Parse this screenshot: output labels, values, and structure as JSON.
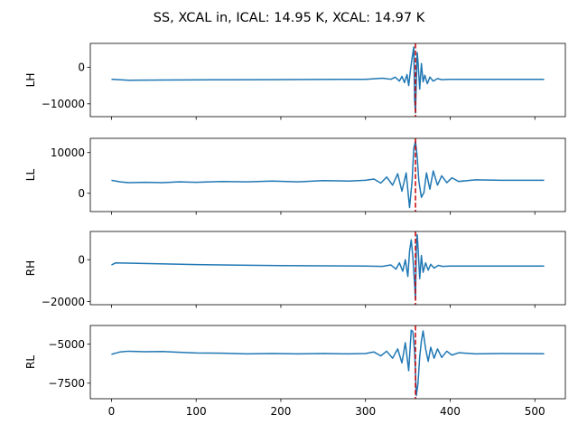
{
  "chart_data": {
    "type": "line",
    "title": "SS, XCAL in, ICAL: 14.95 K, XCAL: 14.97 K",
    "colors": {
      "series": "#1f77b4",
      "marker": "#cc0000"
    },
    "x_ticks": [
      0,
      100,
      200,
      300,
      400,
      500
    ],
    "xlim": [
      -25,
      536
    ],
    "marker_x": 359,
    "panels": [
      {
        "ylabel": "LH",
        "ylim": [
          -13500,
          6500
        ],
        "y_ticks": [
          0,
          -10000
        ],
        "y_tick_labels": [
          "0",
          "−10000"
        ],
        "baseline": [
          [
            0,
            -3200
          ],
          [
            100,
            -3500
          ],
          [
            200,
            -3400
          ],
          [
            300,
            -3350
          ],
          [
            511,
            -3300
          ]
        ],
        "series": {
          "name": "",
          "x": [
            0,
            20,
            60,
            120,
            180,
            240,
            300,
            320,
            330,
            335,
            340,
            343,
            346,
            349,
            351,
            353,
            355,
            357,
            358,
            359,
            360,
            361,
            362,
            364,
            366,
            368,
            370,
            373,
            376,
            380,
            385,
            390,
            400,
            430,
            511
          ],
          "y": [
            -3300,
            -3550,
            -3500,
            -3450,
            -3400,
            -3350,
            -3300,
            -3000,
            -3300,
            -2700,
            -3800,
            -2500,
            -4200,
            -2000,
            -5000,
            -1000,
            2500,
            5500,
            -9000,
            -12500,
            -4000,
            4000,
            1500,
            -6000,
            1000,
            -4000,
            -2200,
            -4500,
            -2700,
            -3800,
            -3100,
            -3400,
            -3300,
            -3300,
            -3300
          ]
        }
      },
      {
        "ylabel": "LL",
        "ylim": [
          -4500,
          13500
        ],
        "y_ticks": [
          10000,
          0
        ],
        "y_tick_labels": [
          "10000",
          "0"
        ],
        "baseline": [
          [
            0,
            3200
          ],
          [
            20,
            2700
          ],
          [
            80,
            2800
          ],
          [
            150,
            2900
          ],
          [
            250,
            3000
          ],
          [
            511,
            3200
          ]
        ],
        "series": {
          "name": "",
          "x": [
            0,
            10,
            20,
            40,
            60,
            80,
            100,
            130,
            160,
            190,
            220,
            250,
            280,
            300,
            310,
            318,
            325,
            332,
            338,
            343,
            348,
            352,
            355,
            357,
            359,
            361,
            363,
            366,
            369,
            372,
            376,
            380,
            385,
            390,
            396,
            402,
            410,
            430,
            460,
            511
          ],
          "y": [
            3200,
            2800,
            2600,
            2700,
            2600,
            2800,
            2700,
            2900,
            2800,
            3000,
            2800,
            3100,
            3000,
            3200,
            3500,
            2500,
            4000,
            2000,
            4800,
            500,
            5000,
            -3500,
            3000,
            11000,
            12800,
            9000,
            3000,
            -1000,
            200,
            5000,
            1000,
            5500,
            2000,
            4300,
            2600,
            3800,
            2900,
            3300,
            3200,
            3200
          ]
        }
      },
      {
        "ylabel": "RH",
        "ylim": [
          -21500,
          13500
        ],
        "y_ticks": [
          0,
          -20000
        ],
        "y_tick_labels": [
          "0",
          "−20000"
        ],
        "baseline": [
          [
            0,
            -1500
          ],
          [
            100,
            -2400
          ],
          [
            200,
            -2800
          ],
          [
            300,
            -3000
          ],
          [
            511,
            -3000
          ]
        ],
        "series": {
          "name": "",
          "x": [
            0,
            5,
            50,
            100,
            150,
            200,
            250,
            300,
            320,
            330,
            336,
            340,
            344,
            347,
            350,
            352,
            354,
            356,
            358,
            359,
            360,
            361,
            362,
            364,
            366,
            368,
            371,
            374,
            377,
            381,
            386,
            391,
            400,
            430,
            511
          ],
          "y": [
            -2500,
            -1500,
            -1900,
            -2300,
            -2600,
            -2800,
            -2900,
            -3000,
            -3200,
            -2500,
            -4500,
            -1500,
            -5500,
            0,
            -8000,
            4000,
            9500,
            1000,
            -12000,
            -19000,
            5000,
            12000,
            6000,
            -9000,
            2000,
            -6000,
            -1500,
            -5000,
            -2200,
            -4000,
            -2700,
            -3200,
            -3000,
            -3000,
            -3000
          ]
        }
      },
      {
        "ylabel": "RL",
        "ylim": [
          -8500,
          -3800
        ],
        "y_ticks": [
          -5000,
          -7500
        ],
        "y_tick_labels": [
          "−5000",
          "−7500"
        ],
        "baseline": [
          [
            0,
            -5600
          ],
          [
            20,
            -5450
          ],
          [
            60,
            -5470
          ],
          [
            130,
            -5580
          ],
          [
            200,
            -5620
          ],
          [
            300,
            -5620
          ],
          [
            511,
            -5600
          ]
        ],
        "series": {
          "name": "",
          "x": [
            0,
            10,
            20,
            40,
            60,
            80,
            100,
            130,
            160,
            190,
            220,
            250,
            280,
            300,
            310,
            318,
            325,
            332,
            338,
            343,
            347,
            351,
            354,
            356,
            358,
            360,
            362,
            364,
            366,
            368,
            371,
            374,
            377,
            381,
            385,
            390,
            396,
            402,
            410,
            430,
            460,
            511
          ],
          "y": [
            -5650,
            -5500,
            -5450,
            -5480,
            -5470,
            -5520,
            -5560,
            -5580,
            -5620,
            -5600,
            -5620,
            -5600,
            -5620,
            -5600,
            -5500,
            -5750,
            -5450,
            -5900,
            -5300,
            -6200,
            -4900,
            -6700,
            -4100,
            -4200,
            -5500,
            -8300,
            -7500,
            -5800,
            -4800,
            -4150,
            -5300,
            -6100,
            -5200,
            -5900,
            -5300,
            -5850,
            -5450,
            -5700,
            -5550,
            -5620,
            -5600,
            -5610
          ]
        }
      }
    ]
  }
}
